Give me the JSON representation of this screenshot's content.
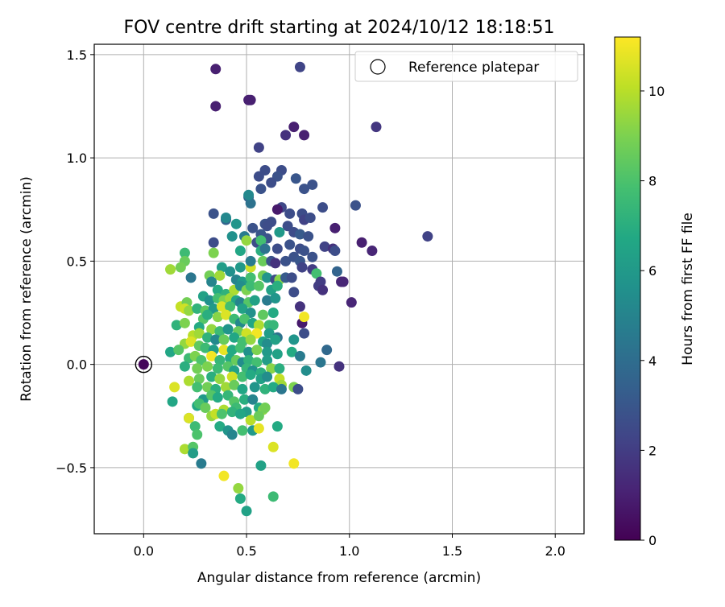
{
  "chart_data": {
    "type": "scatter",
    "title": "FOV centre drift starting at 2024/10/12 18:18:51",
    "xlabel": "Angular distance from reference (arcmin)",
    "ylabel": "Rotation from reference (arcmin)",
    "xlim": [
      -0.24,
      2.14
    ],
    "ylim": [
      -0.82,
      1.55
    ],
    "xticks": [
      0.0,
      0.5,
      1.0,
      1.5,
      2.0
    ],
    "xtick_labels": [
      "0.0",
      "0.5",
      "1.0",
      "1.5",
      "2.0"
    ],
    "yticks": [
      -0.5,
      0.0,
      0.5,
      1.0,
      1.5
    ],
    "ytick_labels": [
      "−0.5",
      "0.0",
      "0.5",
      "1.0",
      "1.5"
    ],
    "grid": true,
    "legend": {
      "position": "top-right",
      "entries": [
        "Reference platepar"
      ]
    },
    "colorbar": {
      "label": "Hours from first FF file",
      "range": [
        0,
        11.2
      ],
      "ticks": [
        0,
        2,
        4,
        6,
        8,
        10
      ],
      "tick_labels": [
        "0",
        "2",
        "4",
        "6",
        "8",
        "10"
      ],
      "colormap": "viridis"
    },
    "reference_point": {
      "x": 0.0,
      "y": 0.0,
      "hours": 0.2
    },
    "points": [
      [
        0.35,
        1.43,
        1.0
      ],
      [
        0.76,
        1.44,
        2.3
      ],
      [
        0.35,
        1.25,
        1.0
      ],
      [
        0.52,
        1.28,
        1.0
      ],
      [
        0.51,
        1.28,
        1.0
      ],
      [
        0.73,
        1.15,
        1.0
      ],
      [
        0.69,
        1.11,
        1.6
      ],
      [
        0.78,
        1.11,
        1.0
      ],
      [
        1.13,
        1.15,
        1.8
      ],
      [
        0.56,
        1.05,
        2.2
      ],
      [
        0.59,
        0.94,
        2.6
      ],
      [
        0.56,
        0.91,
        2.6
      ],
      [
        0.67,
        0.94,
        2.6
      ],
      [
        0.74,
        0.9,
        3.0
      ],
      [
        0.65,
        0.91,
        2.8
      ],
      [
        0.62,
        0.88,
        2.6
      ],
      [
        0.57,
        0.85,
        2.8
      ],
      [
        0.78,
        0.85,
        2.8
      ],
      [
        0.82,
        0.87,
        2.8
      ],
      [
        0.51,
        0.81,
        3.4
      ],
      [
        0.52,
        0.78,
        4.2
      ],
      [
        0.51,
        0.82,
        5.2
      ],
      [
        0.67,
        0.76,
        2.4
      ],
      [
        0.77,
        0.73,
        2.6
      ],
      [
        0.71,
        0.73,
        2.6
      ],
      [
        0.87,
        0.76,
        2.6
      ],
      [
        1.03,
        0.77,
        2.8
      ],
      [
        0.34,
        0.73,
        2.8
      ],
      [
        0.4,
        0.7,
        3.6
      ],
      [
        0.4,
        0.71,
        5.2
      ],
      [
        0.45,
        0.68,
        5.8
      ],
      [
        0.59,
        0.68,
        2.8
      ],
      [
        0.62,
        0.69,
        2.6
      ],
      [
        0.65,
        0.75,
        0.8
      ],
      [
        0.78,
        0.7,
        2.2
      ],
      [
        0.81,
        0.71,
        2.6
      ],
      [
        0.7,
        0.67,
        2.6
      ],
      [
        0.53,
        0.66,
        2.8
      ],
      [
        0.6,
        0.67,
        2.6
      ],
      [
        0.57,
        0.63,
        3.0
      ],
      [
        0.6,
        0.61,
        2.8
      ],
      [
        0.66,
        0.64,
        6.0
      ],
      [
        0.73,
        0.64,
        2.6
      ],
      [
        0.76,
        0.63,
        3.2
      ],
      [
        0.8,
        0.62,
        2.8
      ],
      [
        0.93,
        0.66,
        1.0
      ],
      [
        1.38,
        0.62,
        2.2
      ],
      [
        0.34,
        0.59,
        2.6
      ],
      [
        0.43,
        0.62,
        5.6
      ],
      [
        0.49,
        0.62,
        4.6
      ],
      [
        0.5,
        0.6,
        9.4
      ],
      [
        0.55,
        0.59,
        2.6
      ],
      [
        0.57,
        0.6,
        7.8
      ],
      [
        0.47,
        0.55,
        6.6
      ],
      [
        0.57,
        0.55,
        7.0
      ],
      [
        0.59,
        0.56,
        4.2
      ],
      [
        0.65,
        0.56,
        2.6
      ],
      [
        0.71,
        0.58,
        2.8
      ],
      [
        0.76,
        0.56,
        2.6
      ],
      [
        0.78,
        0.55,
        2.8
      ],
      [
        0.82,
        0.52,
        2.8
      ],
      [
        0.88,
        0.57,
        2.2
      ],
      [
        0.92,
        0.56,
        1.6
      ],
      [
        0.93,
        0.55,
        2.6
      ],
      [
        1.06,
        0.59,
        1.0
      ],
      [
        1.11,
        0.55,
        1.2
      ],
      [
        0.2,
        0.54,
        7.6
      ],
      [
        0.2,
        0.5,
        8.6
      ],
      [
        0.34,
        0.54,
        9.0
      ],
      [
        0.13,
        0.46,
        9.6
      ],
      [
        0.18,
        0.47,
        8.8
      ],
      [
        0.38,
        0.47,
        6.2
      ],
      [
        0.42,
        0.45,
        5.6
      ],
      [
        0.47,
        0.47,
        6.0
      ],
      [
        0.52,
        0.47,
        10.4
      ],
      [
        0.52,
        0.5,
        4.6
      ],
      [
        0.58,
        0.5,
        8.6
      ],
      [
        0.62,
        0.5,
        2.8
      ],
      [
        0.64,
        0.49,
        1.6
      ],
      [
        0.69,
        0.5,
        2.8
      ],
      [
        0.73,
        0.52,
        2.8
      ],
      [
        0.76,
        0.5,
        3.0
      ],
      [
        0.77,
        0.47,
        2.2
      ],
      [
        0.82,
        0.46,
        2.0
      ],
      [
        0.84,
        0.44,
        7.8
      ],
      [
        0.94,
        0.45,
        3.6
      ],
      [
        0.23,
        0.42,
        4.4
      ],
      [
        0.32,
        0.43,
        8.8
      ],
      [
        0.37,
        0.43,
        9.6
      ],
      [
        0.45,
        0.41,
        5.0
      ],
      [
        0.48,
        0.4,
        6.0
      ],
      [
        0.52,
        0.42,
        7.8
      ],
      [
        0.58,
        0.43,
        8.8
      ],
      [
        0.6,
        0.42,
        5.8
      ],
      [
        0.64,
        0.41,
        2.6
      ],
      [
        0.66,
        0.41,
        9.2
      ],
      [
        0.69,
        0.42,
        3.2
      ],
      [
        0.72,
        0.42,
        2.6
      ],
      [
        0.86,
        0.4,
        2.0
      ],
      [
        0.96,
        0.4,
        1.2
      ],
      [
        0.97,
        0.4,
        1.2
      ],
      [
        0.33,
        0.4,
        5.0
      ],
      [
        0.36,
        0.36,
        6.8
      ],
      [
        0.4,
        0.34,
        7.2
      ],
      [
        0.44,
        0.36,
        9.8
      ],
      [
        0.47,
        0.38,
        5.4
      ],
      [
        0.5,
        0.36,
        9.0
      ],
      [
        0.52,
        0.38,
        7.6
      ],
      [
        0.56,
        0.38,
        8.2
      ],
      [
        0.62,
        0.36,
        6.4
      ],
      [
        0.65,
        0.38,
        7.0
      ],
      [
        0.73,
        0.35,
        2.6
      ],
      [
        0.85,
        0.38,
        2.0
      ],
      [
        0.87,
        0.36,
        1.6
      ],
      [
        0.18,
        0.28,
        10.2
      ],
      [
        0.21,
        0.3,
        8.8
      ],
      [
        0.29,
        0.33,
        6.4
      ],
      [
        0.32,
        0.31,
        5.6
      ],
      [
        0.36,
        0.32,
        7.8
      ],
      [
        0.39,
        0.31,
        9.0
      ],
      [
        0.42,
        0.32,
        9.6
      ],
      [
        0.45,
        0.31,
        6.6
      ],
      [
        0.47,
        0.3,
        5.0
      ],
      [
        0.51,
        0.3,
        8.2
      ],
      [
        0.54,
        0.31,
        6.4
      ],
      [
        0.6,
        0.31,
        4.6
      ],
      [
        0.64,
        0.32,
        5.8
      ],
      [
        0.2,
        0.27,
        10.4
      ],
      [
        0.22,
        0.26,
        9.4
      ],
      [
        0.26,
        0.27,
        7.2
      ],
      [
        0.3,
        0.26,
        8.4
      ],
      [
        0.34,
        0.27,
        6.0
      ],
      [
        0.38,
        0.28,
        10.6
      ],
      [
        0.42,
        0.28,
        7.8
      ],
      [
        0.48,
        0.27,
        6.4
      ],
      [
        0.52,
        0.25,
        5.6
      ],
      [
        0.58,
        0.24,
        8.4
      ],
      [
        0.63,
        0.25,
        6.8
      ],
      [
        0.76,
        0.28,
        1.6
      ],
      [
        1.01,
        0.3,
        1.2
      ],
      [
        0.29,
        0.22,
        8.2
      ],
      [
        0.31,
        0.24,
        7.0
      ],
      [
        0.36,
        0.23,
        9.2
      ],
      [
        0.4,
        0.24,
        10.6
      ],
      [
        0.44,
        0.22,
        7.6
      ],
      [
        0.47,
        0.2,
        5.2
      ],
      [
        0.49,
        0.22,
        8.0
      ],
      [
        0.53,
        0.2,
        6.6
      ],
      [
        0.56,
        0.19,
        9.8
      ],
      [
        0.61,
        0.19,
        7.6
      ],
      [
        0.63,
        0.19,
        7.4
      ],
      [
        0.16,
        0.19,
        7.2
      ],
      [
        0.2,
        0.2,
        9.0
      ],
      [
        0.27,
        0.18,
        6.8
      ],
      [
        0.33,
        0.17,
        9.4
      ],
      [
        0.37,
        0.16,
        7.6
      ],
      [
        0.41,
        0.17,
        5.8
      ],
      [
        0.46,
        0.16,
        8.6
      ],
      [
        0.5,
        0.15,
        10.4
      ],
      [
        0.55,
        0.15,
        11.0
      ],
      [
        0.61,
        0.15,
        6.2
      ],
      [
        0.65,
        0.13,
        4.2
      ],
      [
        0.77,
        0.2,
        0.8
      ],
      [
        0.78,
        0.23,
        11.0
      ],
      [
        0.78,
        0.15,
        2.6
      ],
      [
        0.24,
        0.14,
        10.0
      ],
      [
        0.27,
        0.15,
        9.6
      ],
      [
        0.31,
        0.13,
        7.2
      ],
      [
        0.35,
        0.12,
        5.2
      ],
      [
        0.39,
        0.12,
        8.6
      ],
      [
        0.44,
        0.13,
        6.6
      ],
      [
        0.48,
        0.11,
        7.8
      ],
      [
        0.52,
        0.12,
        9.4
      ],
      [
        0.58,
        0.11,
        6.6
      ],
      [
        0.6,
        0.1,
        5.4
      ],
      [
        0.64,
        0.12,
        6.4
      ],
      [
        0.73,
        0.12,
        5.8
      ],
      [
        0.2,
        0.1,
        9.4
      ],
      [
        0.23,
        0.11,
        10.6
      ],
      [
        0.27,
        0.09,
        8.4
      ],
      [
        0.3,
        0.08,
        7.6
      ],
      [
        0.34,
        0.07,
        6.2
      ],
      [
        0.39,
        0.07,
        10.8
      ],
      [
        0.43,
        0.07,
        6.8
      ],
      [
        0.47,
        0.08,
        7.8
      ],
      [
        0.51,
        0.06,
        5.6
      ],
      [
        0.55,
        0.07,
        9.0
      ],
      [
        0.6,
        0.06,
        6.0
      ],
      [
        0.65,
        0.05,
        6.4
      ],
      [
        0.72,
        0.06,
        6.8
      ],
      [
        0.76,
        0.04,
        4.6
      ],
      [
        0.89,
        0.07,
        3.8
      ],
      [
        0.13,
        0.06,
        6.6
      ],
      [
        0.17,
        0.07,
        8.2
      ],
      [
        0.22,
        0.03,
        7.6
      ],
      [
        0.25,
        0.04,
        9.0
      ],
      [
        0.28,
        0.02,
        8.0
      ],
      [
        0.33,
        0.04,
        11.0
      ],
      [
        0.37,
        0.02,
        7.4
      ],
      [
        0.42,
        0.03,
        6.8
      ],
      [
        0.45,
        0.02,
        8.6
      ],
      [
        0.48,
        0.01,
        5.4
      ],
      [
        0.51,
        0.02,
        7.2
      ],
      [
        0.55,
        0.01,
        7.8
      ],
      [
        0.6,
        0.02,
        6.2
      ],
      [
        0.86,
        0.01,
        4.4
      ],
      [
        0.95,
        -0.01,
        1.6
      ],
      [
        0.2,
        -0.01,
        7.0
      ],
      [
        0.26,
        -0.02,
        8.8
      ],
      [
        0.31,
        -0.01,
        9.0
      ],
      [
        0.36,
        -0.02,
        7.6
      ],
      [
        0.41,
        -0.01,
        8.2
      ],
      [
        0.44,
        -0.03,
        6.4
      ],
      [
        0.5,
        -0.02,
        7.4
      ],
      [
        0.53,
        -0.03,
        5.6
      ],
      [
        0.57,
        -0.04,
        7.0
      ],
      [
        0.62,
        -0.02,
        9.2
      ],
      [
        0.66,
        -0.02,
        7.0
      ],
      [
        0.79,
        -0.03,
        5.4
      ],
      [
        0.22,
        -0.08,
        9.8
      ],
      [
        0.27,
        -0.07,
        8.6
      ],
      [
        0.33,
        -0.06,
        7.0
      ],
      [
        0.37,
        -0.07,
        9.4
      ],
      [
        0.43,
        -0.06,
        10.4
      ],
      [
        0.48,
        -0.06,
        7.8
      ],
      [
        0.52,
        -0.05,
        6.8
      ],
      [
        0.57,
        -0.07,
        6.4
      ],
      [
        0.6,
        -0.06,
        5.4
      ],
      [
        0.66,
        -0.07,
        10.2
      ],
      [
        0.67,
        -0.1,
        9.6
      ],
      [
        0.15,
        -0.11,
        10.6
      ],
      [
        0.26,
        -0.11,
        7.8
      ],
      [
        0.31,
        -0.11,
        8.8
      ],
      [
        0.35,
        -0.12,
        7.0
      ],
      [
        0.4,
        -0.11,
        9.6
      ],
      [
        0.44,
        -0.1,
        8.6
      ],
      [
        0.48,
        -0.12,
        6.6
      ],
      [
        0.54,
        -0.11,
        5.8
      ],
      [
        0.59,
        -0.12,
        7.2
      ],
      [
        0.63,
        -0.11,
        6.8
      ],
      [
        0.67,
        -0.12,
        4.4
      ],
      [
        0.73,
        -0.11,
        9.0
      ],
      [
        0.75,
        -0.12,
        2.6
      ],
      [
        0.14,
        -0.18,
        6.6
      ],
      [
        0.29,
        -0.17,
        6.0
      ],
      [
        0.33,
        -0.15,
        8.2
      ],
      [
        0.36,
        -0.16,
        6.8
      ],
      [
        0.41,
        -0.15,
        7.4
      ],
      [
        0.44,
        -0.18,
        8.2
      ],
      [
        0.49,
        -0.17,
        7.0
      ],
      [
        0.53,
        -0.17,
        5.0
      ],
      [
        0.56,
        -0.21,
        6.8
      ],
      [
        0.26,
        -0.2,
        6.6
      ],
      [
        0.27,
        -0.19,
        7.8
      ],
      [
        0.3,
        -0.21,
        8.6
      ],
      [
        0.39,
        -0.22,
        9.8
      ],
      [
        0.45,
        -0.21,
        7.6
      ],
      [
        0.5,
        -0.23,
        6.2
      ],
      [
        0.58,
        -0.22,
        9.2
      ],
      [
        0.59,
        -0.21,
        8.8
      ],
      [
        0.22,
        -0.26,
        5.8
      ],
      [
        0.22,
        -0.26,
        10.6
      ],
      [
        0.33,
        -0.25,
        9.4
      ],
      [
        0.35,
        -0.24,
        10.2
      ],
      [
        0.38,
        -0.24,
        8.0
      ],
      [
        0.43,
        -0.23,
        7.2
      ],
      [
        0.47,
        -0.24,
        6.6
      ],
      [
        0.52,
        -0.27,
        10.0
      ],
      [
        0.56,
        -0.25,
        8.6
      ],
      [
        0.25,
        -0.3,
        7.6
      ],
      [
        0.37,
        -0.3,
        6.8
      ],
      [
        0.41,
        -0.32,
        5.8
      ],
      [
        0.43,
        -0.34,
        5.0
      ],
      [
        0.48,
        -0.32,
        7.8
      ],
      [
        0.53,
        -0.32,
        6.0
      ],
      [
        0.56,
        -0.31,
        10.8
      ],
      [
        0.65,
        -0.3,
        6.8
      ],
      [
        0.26,
        -0.34,
        8.0
      ],
      [
        0.2,
        -0.41,
        9.8
      ],
      [
        0.24,
        -0.4,
        8.2
      ],
      [
        0.24,
        -0.43,
        6.2
      ],
      [
        0.28,
        -0.48,
        4.6
      ],
      [
        0.63,
        -0.4,
        10.6
      ],
      [
        0.57,
        -0.49,
        6.4
      ],
      [
        0.73,
        -0.48,
        11.0
      ],
      [
        0.39,
        -0.54,
        11.0
      ],
      [
        0.46,
        -0.6,
        9.4
      ],
      [
        0.47,
        -0.65,
        6.8
      ],
      [
        0.5,
        -0.71,
        6.4
      ],
      [
        0.63,
        -0.64,
        7.6
      ]
    ]
  }
}
